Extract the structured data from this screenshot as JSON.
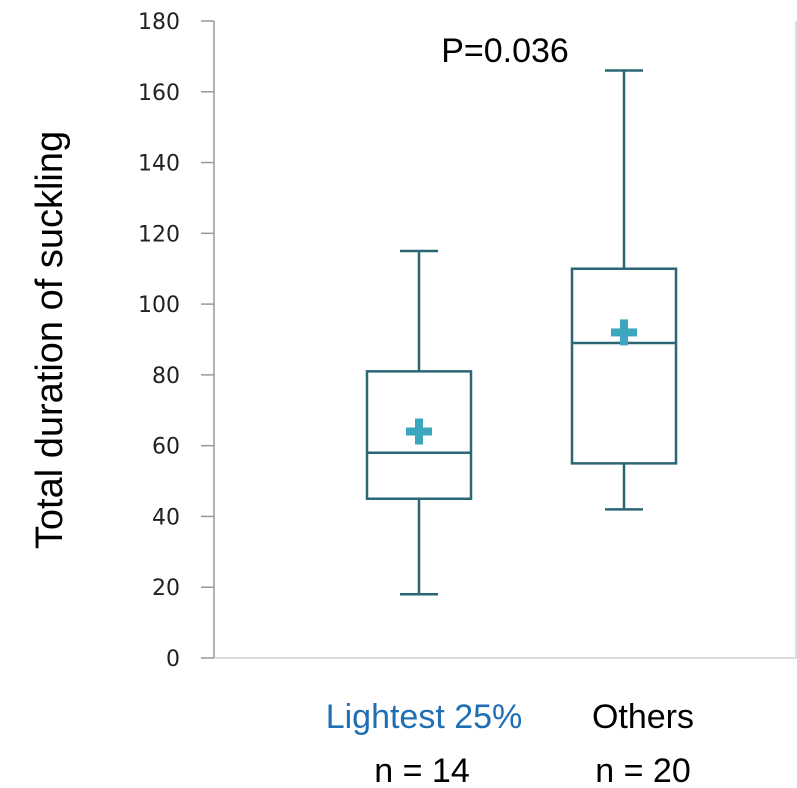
{
  "chart_data": {
    "type": "box",
    "ylabel": "Total duration of suckling",
    "xlabel": "",
    "ylim": [
      0,
      180
    ],
    "yticks": [
      0,
      20,
      40,
      60,
      80,
      100,
      120,
      140,
      160,
      180
    ],
    "annotation": "P=0.036",
    "grid": false,
    "categories": [
      {
        "label": "Lightest 25%",
        "n_label": "n = 14",
        "label_color": "#1f6fb5"
      },
      {
        "label": "Others",
        "n_label": "n = 20",
        "label_color": "#000000"
      }
    ],
    "boxes": [
      {
        "min": 18,
        "q1": 45,
        "median": 58,
        "q3": 81,
        "max": 115,
        "mean": 64
      },
      {
        "min": 42,
        "q1": 55,
        "median": 89,
        "q3": 110,
        "max": 166,
        "mean": 92
      }
    ],
    "colors": {
      "box": "#2b6674",
      "mean_marker": "#3ca6bf",
      "axis": "#999999"
    }
  }
}
